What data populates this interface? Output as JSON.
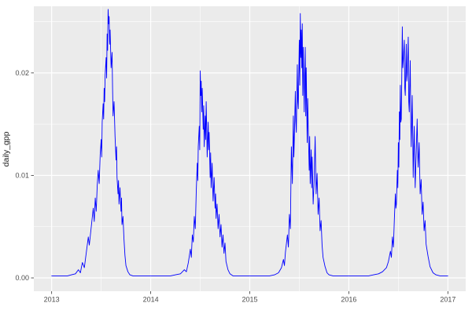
{
  "chart_data": {
    "type": "line",
    "title": "",
    "xlabel": "",
    "ylabel": "daily_gpp",
    "legend": "none",
    "grid": "on",
    "colors": {
      "line": "#0000FF",
      "panel_bg": "#EBEBEB",
      "grid_major": "#FFFFFF",
      "grid_minor": "#FFFFFF",
      "tick_text": "#4D4D4D",
      "tick_mark": "#333333",
      "figure_bg": "#FFFFFF"
    },
    "xlim": [
      2012.82,
      2017.18
    ],
    "ylim": [
      -0.0013,
      0.0265
    ],
    "x_ticks": [
      2013,
      2014,
      2015,
      2016,
      2017
    ],
    "x_tick_labels": [
      "2013",
      "2014",
      "2015",
      "2016",
      "2017"
    ],
    "x_minor_ticks": [
      2013.5,
      2014.5,
      2015.5,
      2016.5
    ],
    "y_ticks": [
      0.0,
      0.01,
      0.02
    ],
    "y_tick_labels": [
      "0.00",
      "0.01",
      "0.02"
    ],
    "y_minor_ticks": [
      0.005,
      0.015,
      0.025
    ],
    "series": [
      {
        "name": "daily_gpp",
        "points": [
          [
            2013.0,
            0.0002
          ],
          [
            2013.04,
            0.0002
          ],
          [
            2013.08,
            0.0002
          ],
          [
            2013.12,
            0.0002
          ],
          [
            2013.16,
            0.0002
          ],
          [
            2013.2,
            0.0003
          ],
          [
            2013.24,
            0.0004
          ],
          [
            2013.27,
            0.0008
          ],
          [
            2013.29,
            0.0005
          ],
          [
            2013.31,
            0.0015
          ],
          [
            2013.33,
            0.001
          ],
          [
            2013.35,
            0.0025
          ],
          [
            2013.37,
            0.004
          ],
          [
            2013.38,
            0.0032
          ],
          [
            2013.4,
            0.005
          ],
          [
            2013.42,
            0.0068
          ],
          [
            2013.43,
            0.0055
          ],
          [
            2013.44,
            0.0078
          ],
          [
            2013.45,
            0.0065
          ],
          [
            2013.46,
            0.009
          ],
          [
            2013.47,
            0.0105
          ],
          [
            2013.48,
            0.0092
          ],
          [
            2013.49,
            0.012
          ],
          [
            2013.5,
            0.0135
          ],
          [
            2013.505,
            0.0118
          ],
          [
            2013.51,
            0.0152
          ],
          [
            2013.52,
            0.017
          ],
          [
            2013.525,
            0.0155
          ],
          [
            2013.53,
            0.0185
          ],
          [
            2013.535,
            0.0172
          ],
          [
            2013.54,
            0.0198
          ],
          [
            2013.55,
            0.0215
          ],
          [
            2013.555,
            0.0195
          ],
          [
            2013.56,
            0.0238
          ],
          [
            2013.565,
            0.0222
          ],
          [
            2013.57,
            0.0262
          ],
          [
            2013.575,
            0.0248
          ],
          [
            2013.58,
            0.0255
          ],
          [
            2013.585,
            0.0228
          ],
          [
            2013.59,
            0.0242
          ],
          [
            2013.6,
            0.0205
          ],
          [
            2013.61,
            0.022
          ],
          [
            2013.615,
            0.0185
          ],
          [
            2013.62,
            0.0158
          ],
          [
            2013.63,
            0.0172
          ],
          [
            2013.64,
            0.0138
          ],
          [
            2013.65,
            0.0115
          ],
          [
            2013.655,
            0.0128
          ],
          [
            2013.66,
            0.0098
          ],
          [
            2013.67,
            0.0082
          ],
          [
            2013.675,
            0.0095
          ],
          [
            2013.68,
            0.0072
          ],
          [
            2013.69,
            0.0088
          ],
          [
            2013.7,
            0.0065
          ],
          [
            2013.705,
            0.0078
          ],
          [
            2013.71,
            0.0052
          ],
          [
            2013.72,
            0.006
          ],
          [
            2013.73,
            0.0038
          ],
          [
            2013.74,
            0.0022
          ],
          [
            2013.75,
            0.0012
          ],
          [
            2013.77,
            0.0006
          ],
          [
            2013.79,
            0.0003
          ],
          [
            2013.82,
            0.0002
          ],
          [
            2013.86,
            0.0002
          ],
          [
            2013.9,
            0.0002
          ],
          [
            2013.95,
            0.0002
          ],
          [
            2014.0,
            0.0002
          ],
          [
            2014.05,
            0.0002
          ],
          [
            2014.1,
            0.0002
          ],
          [
            2014.15,
            0.0002
          ],
          [
            2014.2,
            0.0002
          ],
          [
            2014.25,
            0.0003
          ],
          [
            2014.3,
            0.0004
          ],
          [
            2014.34,
            0.0008
          ],
          [
            2014.36,
            0.0006
          ],
          [
            2014.38,
            0.0015
          ],
          [
            2014.4,
            0.0028
          ],
          [
            2014.41,
            0.002
          ],
          [
            2014.42,
            0.0042
          ],
          [
            2014.43,
            0.0035
          ],
          [
            2014.44,
            0.006
          ],
          [
            2014.45,
            0.0048
          ],
          [
            2014.46,
            0.0085
          ],
          [
            2014.47,
            0.0112
          ],
          [
            2014.475,
            0.0095
          ],
          [
            2014.48,
            0.0128
          ],
          [
            2014.49,
            0.0148
          ],
          [
            2014.495,
            0.0125
          ],
          [
            2014.5,
            0.0202
          ],
          [
            2014.505,
            0.0178
          ],
          [
            2014.51,
            0.0192
          ],
          [
            2014.515,
            0.0162
          ],
          [
            2014.52,
            0.0185
          ],
          [
            2014.53,
            0.0145
          ],
          [
            2014.535,
            0.0168
          ],
          [
            2014.54,
            0.0128
          ],
          [
            2014.55,
            0.0158
          ],
          [
            2014.555,
            0.0135
          ],
          [
            2014.56,
            0.0172
          ],
          [
            2014.565,
            0.0148
          ],
          [
            2014.57,
            0.0118
          ],
          [
            2014.58,
            0.0152
          ],
          [
            2014.585,
            0.0125
          ],
          [
            2014.59,
            0.0142
          ],
          [
            2014.6,
            0.0098
          ],
          [
            2014.605,
            0.0122
          ],
          [
            2014.61,
            0.0088
          ],
          [
            2014.62,
            0.0112
          ],
          [
            2014.625,
            0.0092
          ],
          [
            2014.63,
            0.0075
          ],
          [
            2014.64,
            0.0098
          ],
          [
            2014.65,
            0.0068
          ],
          [
            2014.655,
            0.0082
          ],
          [
            2014.66,
            0.0058
          ],
          [
            2014.67,
            0.0072
          ],
          [
            2014.68,
            0.0048
          ],
          [
            2014.69,
            0.0062
          ],
          [
            2014.7,
            0.004
          ],
          [
            2014.71,
            0.0052
          ],
          [
            2014.72,
            0.003
          ],
          [
            2014.73,
            0.0042
          ],
          [
            2014.74,
            0.0024
          ],
          [
            2014.75,
            0.0034
          ],
          [
            2014.76,
            0.0016
          ],
          [
            2014.78,
            0.0008
          ],
          [
            2014.8,
            0.0004
          ],
          [
            2014.83,
            0.0002
          ],
          [
            2014.87,
            0.0002
          ],
          [
            2014.91,
            0.0002
          ],
          [
            2014.95,
            0.0002
          ],
          [
            2015.0,
            0.0002
          ],
          [
            2015.05,
            0.0002
          ],
          [
            2015.1,
            0.0002
          ],
          [
            2015.15,
            0.0002
          ],
          [
            2015.2,
            0.0002
          ],
          [
            2015.25,
            0.0003
          ],
          [
            2015.29,
            0.0005
          ],
          [
            2015.32,
            0.001
          ],
          [
            2015.34,
            0.0018
          ],
          [
            2015.35,
            0.0012
          ],
          [
            2015.36,
            0.0025
          ],
          [
            2015.38,
            0.0042
          ],
          [
            2015.39,
            0.003
          ],
          [
            2015.4,
            0.0062
          ],
          [
            2015.41,
            0.0048
          ],
          [
            2015.42,
            0.0128
          ],
          [
            2015.43,
            0.0092
          ],
          [
            2015.44,
            0.0158
          ],
          [
            2015.445,
            0.0118
          ],
          [
            2015.45,
            0.0135
          ],
          [
            2015.46,
            0.0182
          ],
          [
            2015.465,
            0.0152
          ],
          [
            2015.47,
            0.0142
          ],
          [
            2015.48,
            0.0208
          ],
          [
            2015.485,
            0.0172
          ],
          [
            2015.49,
            0.0165
          ],
          [
            2015.5,
            0.0232
          ],
          [
            2015.505,
            0.0188
          ],
          [
            2015.51,
            0.0258
          ],
          [
            2015.515,
            0.0215
          ],
          [
            2015.52,
            0.0242
          ],
          [
            2015.525,
            0.0205
          ],
          [
            2015.53,
            0.0248
          ],
          [
            2015.535,
            0.0178
          ],
          [
            2015.54,
            0.0225
          ],
          [
            2015.55,
            0.0162
          ],
          [
            2015.555,
            0.0198
          ],
          [
            2015.56,
            0.0225
          ],
          [
            2015.565,
            0.0158
          ],
          [
            2015.57,
            0.0205
          ],
          [
            2015.58,
            0.0132
          ],
          [
            2015.585,
            0.0175
          ],
          [
            2015.59,
            0.0148
          ],
          [
            2015.6,
            0.0105
          ],
          [
            2015.605,
            0.0138
          ],
          [
            2015.61,
            0.0092
          ],
          [
            2015.62,
            0.0125
          ],
          [
            2015.625,
            0.0088
          ],
          [
            2015.63,
            0.0118
          ],
          [
            2015.64,
            0.0072
          ],
          [
            2015.65,
            0.0095
          ],
          [
            2015.66,
            0.0138
          ],
          [
            2015.665,
            0.0108
          ],
          [
            2015.67,
            0.0082
          ],
          [
            2015.68,
            0.0102
          ],
          [
            2015.69,
            0.0062
          ],
          [
            2015.7,
            0.0078
          ],
          [
            2015.71,
            0.0046
          ],
          [
            2015.72,
            0.0056
          ],
          [
            2015.73,
            0.0032
          ],
          [
            2015.74,
            0.002
          ],
          [
            2015.76,
            0.0011
          ],
          [
            2015.78,
            0.0005
          ],
          [
            2015.8,
            0.0003
          ],
          [
            2015.84,
            0.0002
          ],
          [
            2015.88,
            0.0002
          ],
          [
            2015.92,
            0.0002
          ],
          [
            2015.96,
            0.0002
          ],
          [
            2016.0,
            0.0002
          ],
          [
            2016.05,
            0.0002
          ],
          [
            2016.1,
            0.0002
          ],
          [
            2016.15,
            0.0002
          ],
          [
            2016.2,
            0.0002
          ],
          [
            2016.25,
            0.0003
          ],
          [
            2016.3,
            0.0004
          ],
          [
            2016.34,
            0.0006
          ],
          [
            2016.38,
            0.001
          ],
          [
            2016.4,
            0.0016
          ],
          [
            2016.42,
            0.0026
          ],
          [
            2016.43,
            0.002
          ],
          [
            2016.44,
            0.004
          ],
          [
            2016.45,
            0.003
          ],
          [
            2016.46,
            0.0058
          ],
          [
            2016.47,
            0.0082
          ],
          [
            2016.475,
            0.0068
          ],
          [
            2016.48,
            0.0072
          ],
          [
            2016.49,
            0.0105
          ],
          [
            2016.495,
            0.0088
          ],
          [
            2016.5,
            0.0132
          ],
          [
            2016.505,
            0.0108
          ],
          [
            2016.51,
            0.0162
          ],
          [
            2016.515,
            0.0135
          ],
          [
            2016.52,
            0.0188
          ],
          [
            2016.525,
            0.0152
          ],
          [
            2016.53,
            0.0155
          ],
          [
            2016.54,
            0.0245
          ],
          [
            2016.545,
            0.0205
          ],
          [
            2016.55,
            0.0212
          ],
          [
            2016.56,
            0.0232
          ],
          [
            2016.565,
            0.0185
          ],
          [
            2016.57,
            0.0178
          ],
          [
            2016.58,
            0.0228
          ],
          [
            2016.585,
            0.0192
          ],
          [
            2016.59,
            0.0198
          ],
          [
            2016.6,
            0.0235
          ],
          [
            2016.605,
            0.0172
          ],
          [
            2016.61,
            0.0162
          ],
          [
            2016.62,
            0.0212
          ],
          [
            2016.625,
            0.0158
          ],
          [
            2016.63,
            0.0128
          ],
          [
            2016.64,
            0.0178
          ],
          [
            2016.645,
            0.0142
          ],
          [
            2016.65,
            0.0098
          ],
          [
            2016.66,
            0.0148
          ],
          [
            2016.665,
            0.0118
          ],
          [
            2016.67,
            0.0088
          ],
          [
            2016.68,
            0.0122
          ],
          [
            2016.69,
            0.0155
          ],
          [
            2016.695,
            0.0125
          ],
          [
            2016.7,
            0.0108
          ],
          [
            2016.71,
            0.0132
          ],
          [
            2016.72,
            0.0082
          ],
          [
            2016.73,
            0.0096
          ],
          [
            2016.74,
            0.0062
          ],
          [
            2016.75,
            0.0074
          ],
          [
            2016.76,
            0.0046
          ],
          [
            2016.77,
            0.0056
          ],
          [
            2016.78,
            0.0033
          ],
          [
            2016.8,
            0.0021
          ],
          [
            2016.82,
            0.0011
          ],
          [
            2016.85,
            0.0005
          ],
          [
            2016.88,
            0.0003
          ],
          [
            2016.92,
            0.0002
          ],
          [
            2016.96,
            0.0002
          ],
          [
            2017.0,
            0.0002
          ]
        ]
      }
    ]
  }
}
